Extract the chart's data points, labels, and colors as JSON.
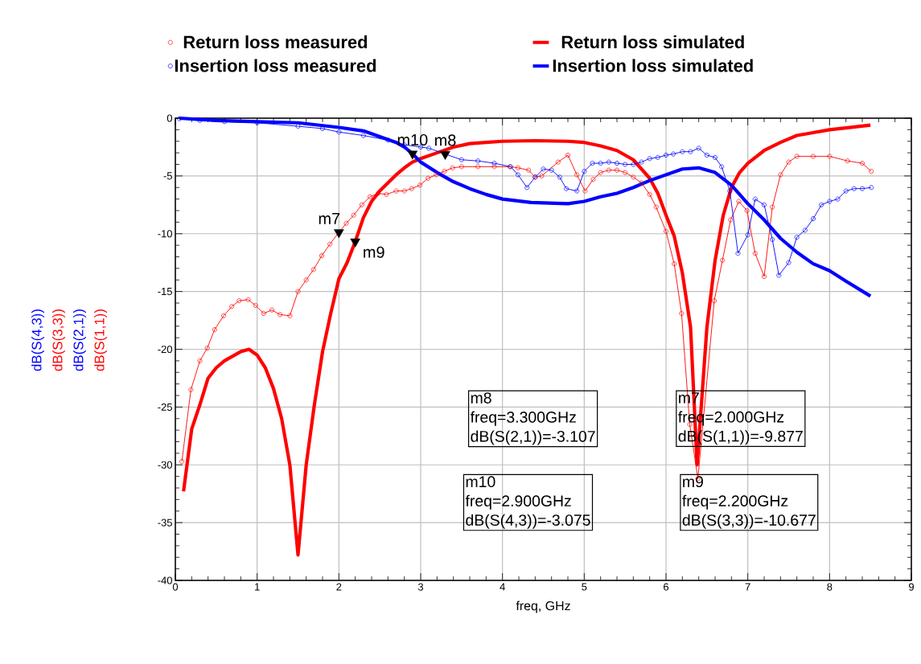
{
  "chart_data": {
    "type": "line",
    "xlabel": "freq, GHz",
    "ylabel": "dB(S(1,1))",
    "xlim": [
      0,
      9
    ],
    "ylim": [
      -40,
      0
    ],
    "xticks": [
      0,
      1,
      2,
      3,
      4,
      5,
      6,
      7,
      8,
      9
    ],
    "yticks": [
      -40,
      -35,
      -30,
      -25,
      -20,
      -15,
      -10,
      -5,
      0
    ],
    "grid": true,
    "legend": "top",
    "series": [
      {
        "name": "Return loss measured",
        "color": "#ff0000",
        "marker": "circle",
        "x": [
          0.08,
          0.19,
          0.3,
          0.39,
          0.48,
          0.59,
          0.69,
          0.78,
          0.89,
          0.98,
          1.08,
          1.18,
          1.28,
          1.4,
          1.5,
          1.6,
          1.69,
          1.79,
          1.89,
          2.0,
          2.09,
          2.18,
          2.28,
          2.38,
          2.48,
          2.58,
          2.7,
          2.8,
          2.89,
          2.99,
          3.09,
          3.19,
          3.29,
          3.39,
          3.5,
          3.7,
          3.9,
          4.09,
          4.19,
          4.32,
          4.4,
          4.48,
          4.68,
          4.8,
          4.91,
          5.01,
          5.11,
          5.2,
          5.3,
          5.4,
          5.5,
          5.6,
          5.7,
          5.8,
          5.88,
          6.0,
          6.1,
          6.19,
          6.29,
          6.39,
          6.59,
          6.69,
          6.79,
          6.89,
          6.99,
          7.09,
          7.2,
          7.3,
          7.4,
          7.5,
          7.6,
          7.8,
          8.0,
          8.22,
          8.4,
          8.51
        ],
        "values": [
          -29.7,
          -23.5,
          -21.0,
          -19.9,
          -18.3,
          -17.1,
          -16.3,
          -15.8,
          -15.7,
          -16.2,
          -16.9,
          -16.6,
          -17.0,
          -17.1,
          -15.0,
          -14.0,
          -13.1,
          -11.9,
          -10.9,
          -9.877,
          -9.1,
          -8.4,
          -7.5,
          -6.8,
          -6.5,
          -6.6,
          -6.3,
          -6.3,
          -6.1,
          -5.8,
          -5.2,
          -4.9,
          -4.6,
          -4.3,
          -4.2,
          -4.2,
          -4.2,
          -4.2,
          -4.3,
          -4.5,
          -5.1,
          -5.0,
          -3.8,
          -3.2,
          -4.9,
          -6.3,
          -5.3,
          -4.7,
          -4.5,
          -4.5,
          -4.7,
          -5.1,
          -5.6,
          -6.6,
          -7.7,
          -9.8,
          -12.6,
          -16.9,
          -26.5,
          -31.2,
          -15.8,
          -12.3,
          -8.8,
          -7.2,
          -8.0,
          -11.7,
          -13.7,
          -7.7,
          -4.9,
          -3.8,
          -3.3,
          -3.3,
          -3.3,
          -3.7,
          -3.9,
          -4.6
        ]
      },
      {
        "name": "Return loss simulated",
        "color": "#ff0000",
        "x": [
          0.1,
          0.2,
          0.3,
          0.4,
          0.5,
          0.6,
          0.8,
          0.9,
          1.0,
          1.1,
          1.2,
          1.3,
          1.4,
          1.5,
          1.6,
          1.7,
          1.8,
          1.9,
          2.0,
          2.1,
          2.2,
          2.3,
          2.4,
          2.5,
          2.6,
          2.7,
          2.8,
          2.9,
          3.0,
          3.2,
          3.4,
          3.6,
          3.8,
          4.0,
          4.4,
          4.8,
          5.0,
          5.2,
          5.4,
          5.6,
          5.8,
          5.9,
          6.0,
          6.1,
          6.2,
          6.3,
          6.38,
          6.5,
          6.6,
          6.7,
          6.8,
          6.9,
          7.0,
          7.2,
          7.4,
          7.6,
          7.8,
          8.0,
          8.2,
          8.5
        ],
        "values": [
          -32.3,
          -26.9,
          -24.8,
          -22.5,
          -21.6,
          -21.0,
          -20.2,
          -20.0,
          -20.5,
          -21.6,
          -23.4,
          -26.0,
          -30.0,
          -37.8,
          -30.0,
          -24.8,
          -20.2,
          -16.9,
          -13.9,
          -12.5,
          -10.677,
          -8.6,
          -7.2,
          -6.3,
          -5.6,
          -4.9,
          -4.3,
          -3.8,
          -3.5,
          -3.0,
          -2.5,
          -2.2,
          -2.1,
          -2.0,
          -1.95,
          -2.0,
          -2.1,
          -2.4,
          -2.8,
          -3.6,
          -5.2,
          -6.5,
          -8.4,
          -10.2,
          -13.4,
          -18.1,
          -30.0,
          -18.1,
          -12.3,
          -8.4,
          -6.0,
          -4.7,
          -3.9,
          -2.8,
          -2.1,
          -1.5,
          -1.25,
          -1.0,
          -0.85,
          -0.6
        ]
      },
      {
        "name": "Insertion loss measured",
        "color": "#0000ff",
        "marker": "circle",
        "x": [
          0.05,
          0.3,
          0.6,
          1.0,
          1.5,
          1.8,
          2.0,
          2.3,
          2.6,
          2.8,
          3.0,
          3.1,
          3.3,
          3.5,
          3.7,
          3.9,
          4.1,
          4.19,
          4.3,
          4.4,
          4.5,
          4.6,
          4.7,
          4.78,
          4.91,
          5.0,
          5.1,
          5.2,
          5.3,
          5.4,
          5.5,
          5.6,
          5.7,
          5.8,
          5.9,
          6.0,
          6.09,
          6.2,
          6.3,
          6.4,
          6.5,
          6.6,
          6.68,
          6.78,
          6.88,
          7.0,
          7.09,
          7.2,
          7.3,
          7.38,
          7.5,
          7.6,
          7.7,
          7.8,
          7.9,
          8.0,
          8.1,
          8.2,
          8.3,
          8.4,
          8.51
        ],
        "values": [
          -0.05,
          -0.2,
          -0.3,
          -0.4,
          -0.7,
          -0.9,
          -1.2,
          -1.5,
          -1.9,
          -2.3,
          -2.5,
          -2.6,
          -3.107,
          -3.6,
          -3.7,
          -3.9,
          -4.2,
          -4.9,
          -6.0,
          -5.1,
          -4.4,
          -4.5,
          -5.1,
          -6.1,
          -6.3,
          -4.6,
          -3.9,
          -3.9,
          -3.8,
          -3.9,
          -4.0,
          -4.0,
          -3.8,
          -3.5,
          -3.4,
          -3.2,
          -3.1,
          -2.9,
          -2.9,
          -2.6,
          -3.2,
          -3.4,
          -4.2,
          -6.3,
          -11.7,
          -10.1,
          -7.0,
          -7.5,
          -10.5,
          -13.6,
          -12.5,
          -10.3,
          -9.7,
          -8.7,
          -7.5,
          -7.2,
          -7.0,
          -6.3,
          -6.1,
          -6.1,
          -6.0
        ]
      },
      {
        "name": "Insertion loss simulated",
        "color": "#0000ff",
        "x": [
          0.05,
          0.5,
          1.0,
          1.5,
          2.0,
          2.3,
          2.5,
          2.7,
          2.8,
          2.9,
          3.0,
          3.2,
          3.4,
          3.6,
          3.8,
          4.0,
          4.35,
          4.8,
          5.0,
          5.2,
          5.4,
          5.6,
          5.8,
          6.0,
          6.2,
          6.4,
          6.6,
          6.8,
          7.0,
          7.2,
          7.4,
          7.6,
          7.8,
          8.0,
          8.2,
          8.5
        ],
        "values": [
          0.0,
          -0.2,
          -0.3,
          -0.4,
          -0.8,
          -1.1,
          -1.6,
          -2.1,
          -2.5,
          -3.075,
          -3.8,
          -4.7,
          -5.5,
          -6.1,
          -6.6,
          -7.0,
          -7.3,
          -7.4,
          -7.2,
          -6.8,
          -6.5,
          -6.0,
          -5.4,
          -4.9,
          -4.4,
          -4.3,
          -4.7,
          -5.8,
          -7.4,
          -8.8,
          -10.4,
          -11.6,
          -12.6,
          -13.2,
          -14.1,
          -15.4
        ]
      },
      {
        "type": "scatter",
        "color": "#000000",
        "marker": "triangle",
        "x": [
          2.0,
          2.2,
          2.9,
          3.3
        ],
        "values": [
          -9.877,
          -10.677,
          -3.075,
          -3.107
        ]
      }
    ],
    "annotations": [
      {
        "text": "m7",
        "x": 2.0,
        "y": -9.877
      },
      {
        "text": "m9",
        "x": 2.2,
        "y": -10.677
      },
      {
        "text": "m10",
        "x": 2.9,
        "y": -3.075
      },
      {
        "text": "m8",
        "x": 3.3,
        "y": -3.107
      },
      "m8",
      "freq=3.300GHz",
      "dB(S(2,1))=-3.107",
      "m7",
      "freq=2.000GHz",
      "dB(S(1,1))=-9.877",
      "m10",
      "freq=2.900GHz",
      "dB(S(4,3))=-3.075",
      "m9",
      "freq=2.200GHz",
      "dB(S(3,3))=-10.677",
      "dB(S(4,3))",
      "dB(S(3,3))",
      "dB(S(2,1))"
    ]
  }
}
